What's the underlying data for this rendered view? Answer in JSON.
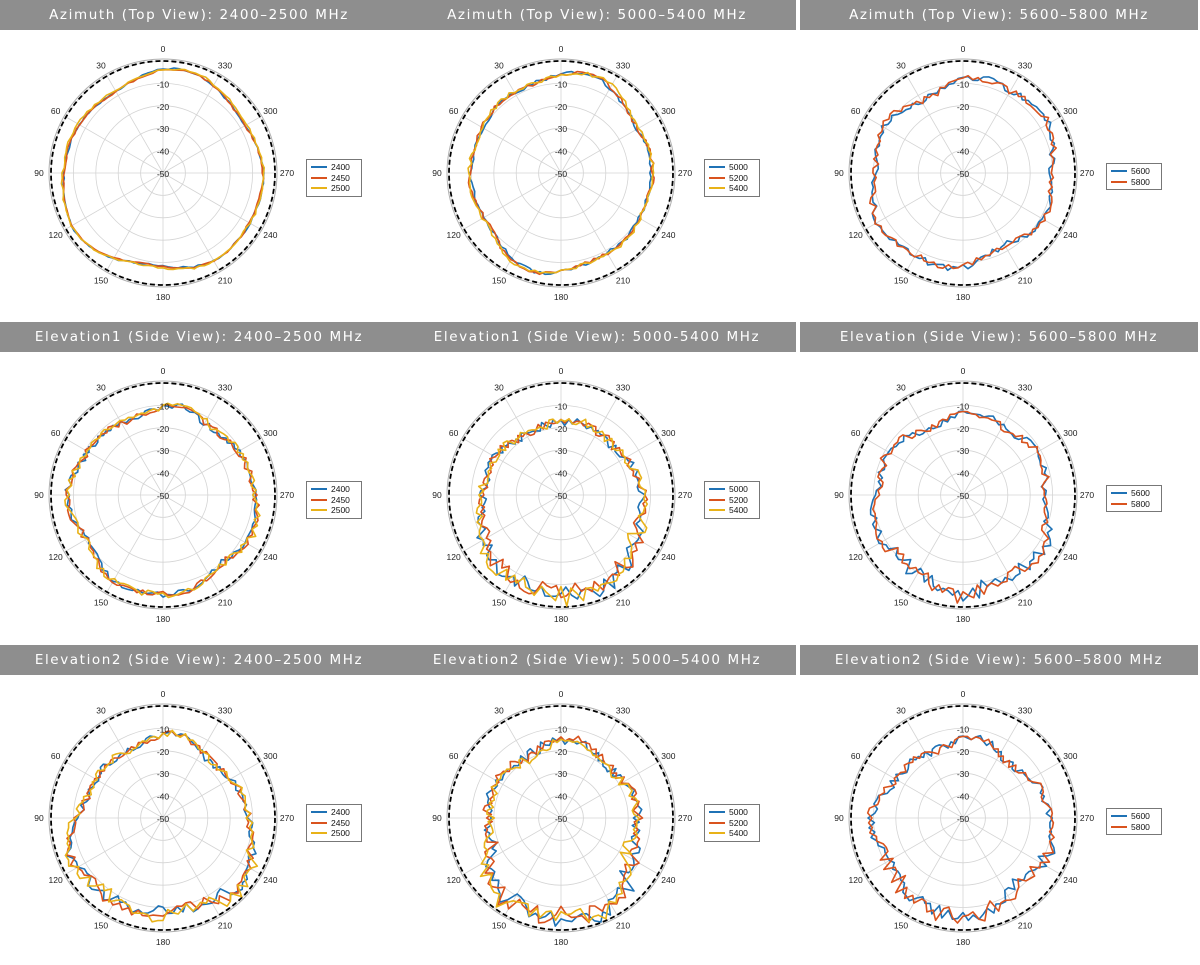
{
  "colors": {
    "blue": "#1f72b5",
    "red": "#d9531e",
    "yellow": "#e8b218",
    "reference": "#000000",
    "grid": "#d4d4d4",
    "header_bg": "#8e8e8e"
  },
  "polar_axes": {
    "angle_labels": [
      "0",
      "30",
      "60",
      "90",
      "120",
      "150",
      "180",
      "210",
      "240",
      "270",
      "300",
      "330"
    ],
    "radial_labels": [
      "0",
      "-10",
      "-20",
      "-30",
      "-40",
      "-50"
    ],
    "rlim": [
      -50,
      0
    ]
  },
  "panels": [
    {
      "title": "Azimuth (Top View): 2400–2500 MHz",
      "chart_data": {
        "type": "polar",
        "theta_direction": "counterclockwise",
        "theta_zero": "top",
        "rlim": [
          -50,
          0
        ],
        "series": [
          {
            "name": "2400",
            "color": "blue",
            "base": -5.8,
            "harmonics": [
              [
                3,
                1.9,
                0.3
              ],
              [
                5,
                1.0,
                1.0
              ],
              [
                2,
                0.6,
                2.0
              ]
            ],
            "noise": 0.4
          },
          {
            "name": "2450",
            "color": "red",
            "base": -5.9,
            "harmonics": [
              [
                3,
                1.8,
                0.4
              ],
              [
                5,
                1.0,
                1.1
              ],
              [
                2,
                0.5,
                2.1
              ]
            ],
            "noise": 0.4
          },
          {
            "name": "2500",
            "color": "yellow",
            "base": -5.5,
            "harmonics": [
              [
                3,
                1.6,
                0.5
              ],
              [
                5,
                0.9,
                1.2
              ],
              [
                2,
                0.6,
                2.2
              ]
            ],
            "noise": 0.5
          }
        ],
        "legend": [
          "2400",
          "2450",
          "2500"
        ]
      }
    },
    {
      "title": "Azimuth (Top View): 5000–5400 MHz",
      "chart_data": {
        "type": "polar",
        "theta_direction": "counterclockwise",
        "theta_zero": "top",
        "rlim": [
          -50,
          0
        ],
        "series": [
          {
            "name": "5000",
            "color": "blue",
            "base": -8.5,
            "harmonics": [
              [
                2,
                2.2,
                0.2
              ],
              [
                4,
                1.2,
                1.0
              ],
              [
                6,
                0.7,
                2.0
              ]
            ],
            "noise": 0.8
          },
          {
            "name": "5200",
            "color": "red",
            "base": -8.2,
            "harmonics": [
              [
                2,
                2.0,
                0.3
              ],
              [
                4,
                1.3,
                1.1
              ],
              [
                6,
                0.8,
                2.1
              ]
            ],
            "noise": 0.8
          },
          {
            "name": "5400",
            "color": "yellow",
            "base": -8.0,
            "harmonics": [
              [
                2,
                2.1,
                0.4
              ],
              [
                4,
                1.1,
                1.3
              ],
              [
                6,
                0.9,
                2.3
              ]
            ],
            "noise": 0.9
          }
        ],
        "legend": [
          "5000",
          "5200",
          "5400"
        ]
      }
    },
    {
      "title": "Azimuth (Top View): 5600–5800 MHz",
      "chart_data": {
        "type": "polar",
        "theta_direction": "counterclockwise",
        "theta_zero": "top",
        "rlim": [
          -50,
          0
        ],
        "series": [
          {
            "name": "5600",
            "color": "blue",
            "base": -9.0,
            "harmonics": [
              [
                2,
                2.3,
                1.5
              ],
              [
                6,
                1.5,
                0.2
              ],
              [
                4,
                0.9,
                2.0
              ]
            ],
            "noise": 1.4
          },
          {
            "name": "5800",
            "color": "red",
            "base": -9.0,
            "harmonics": [
              [
                2,
                2.2,
                1.6
              ],
              [
                6,
                1.6,
                0.3
              ],
              [
                4,
                1.0,
                2.1
              ]
            ],
            "noise": 1.5
          }
        ],
        "legend": [
          "5600",
          "5800"
        ]
      }
    },
    {
      "title": "Elevation1 (Side View): 2400–2500 MHz",
      "chart_data": {
        "type": "polar",
        "theta_direction": "counterclockwise",
        "theta_zero": "top",
        "rlim": [
          -50,
          0
        ],
        "series": [
          {
            "name": "2400",
            "color": "blue",
            "base": -9.5,
            "harmonics": [
              [
                1,
                2.8,
                3.14
              ],
              [
                4,
                1.6,
                0.5
              ],
              [
                7,
                0.9,
                1.0
              ]
            ],
            "noise": 1.4
          },
          {
            "name": "2450",
            "color": "red",
            "base": -9.3,
            "harmonics": [
              [
                1,
                2.7,
                3.14
              ],
              [
                4,
                1.5,
                0.6
              ],
              [
                7,
                1.0,
                1.1
              ]
            ],
            "noise": 1.4
          },
          {
            "name": "2500",
            "color": "yellow",
            "base": -9.0,
            "harmonics": [
              [
                1,
                2.9,
                3.14
              ],
              [
                4,
                1.4,
                0.7
              ],
              [
                7,
                1.0,
                1.2
              ]
            ],
            "noise": 1.5
          }
        ],
        "legend": [
          "2400",
          "2450",
          "2500"
        ]
      }
    },
    {
      "title": "Elevation1 (Side View): 5000-5400 MHz",
      "chart_data": {
        "type": "polar",
        "theta_direction": "counterclockwise",
        "theta_zero": "top",
        "rlim": [
          -50,
          0
        ],
        "series": [
          {
            "name": "5000",
            "color": "blue",
            "base": -13.0,
            "harmonics": [
              [
                1,
                6.5,
                3.14
              ],
              [
                2,
                1.5,
                0.0
              ],
              [
                5,
                1.0,
                0.8
              ]
            ],
            "noise": 2.0,
            "back_noise": 3.5
          },
          {
            "name": "5200",
            "color": "red",
            "base": -12.8,
            "harmonics": [
              [
                1,
                6.3,
                3.14
              ],
              [
                2,
                1.5,
                0.2
              ],
              [
                5,
                1.0,
                0.9
              ]
            ],
            "noise": 2.0,
            "back_noise": 3.5
          },
          {
            "name": "5400",
            "color": "yellow",
            "base": -12.5,
            "harmonics": [
              [
                1,
                6.6,
                3.14
              ],
              [
                2,
                1.4,
                0.3
              ],
              [
                5,
                1.1,
                1.0
              ]
            ],
            "noise": 2.1,
            "back_noise": 3.5
          }
        ],
        "legend": [
          "5000",
          "5200",
          "5400"
        ]
      }
    },
    {
      "title": "Elevation (Side View): 5600–5800 MHz",
      "chart_data": {
        "type": "polar",
        "theta_direction": "counterclockwise",
        "theta_zero": "top",
        "rlim": [
          -50,
          0
        ],
        "series": [
          {
            "name": "5600",
            "color": "blue",
            "base": -11.0,
            "harmonics": [
              [
                1,
                3.8,
                3.14
              ],
              [
                6,
                1.6,
                0.4
              ],
              [
                3,
                1.0,
                1.5
              ]
            ],
            "noise": 1.8,
            "back_noise": 2.8
          },
          {
            "name": "5800",
            "color": "red",
            "base": -11.0,
            "harmonics": [
              [
                1,
                3.9,
                3.14
              ],
              [
                6,
                1.7,
                0.5
              ],
              [
                3,
                1.1,
                1.6
              ]
            ],
            "noise": 1.8,
            "back_noise": 2.8
          }
        ],
        "legend": [
          "5600",
          "5800"
        ]
      }
    },
    {
      "title": "Elevation2 (Side View): 2400–2500 MHz",
      "chart_data": {
        "type": "polar",
        "theta_direction": "counterclockwise",
        "theta_zero": "top",
        "rlim": [
          -50,
          0
        ],
        "series": [
          {
            "name": "2400",
            "color": "blue",
            "base": -11.0,
            "harmonics": [
              [
                1,
                5.0,
                3.14
              ],
              [
                3,
                2.5,
                0.0
              ],
              [
                6,
                1.2,
                1.0
              ]
            ],
            "noise": 1.5,
            "back_noise": 2.5
          },
          {
            "name": "2450",
            "color": "red",
            "base": -11.0,
            "harmonics": [
              [
                1,
                4.8,
                3.14
              ],
              [
                3,
                2.4,
                0.1
              ],
              [
                6,
                1.2,
                1.1
              ]
            ],
            "noise": 1.5,
            "back_noise": 2.5
          },
          {
            "name": "2500",
            "color": "yellow",
            "base": -10.5,
            "harmonics": [
              [
                1,
                5.2,
                3.14
              ],
              [
                3,
                2.6,
                0.2
              ],
              [
                6,
                1.3,
                1.2
              ]
            ],
            "noise": 1.6,
            "back_noise": 2.5
          }
        ],
        "legend": [
          "2400",
          "2450",
          "2500"
        ]
      }
    },
    {
      "title": "Elevation2 (Side View): 5000–5400 MHz",
      "chart_data": {
        "type": "polar",
        "theta_direction": "counterclockwise",
        "theta_zero": "top",
        "rlim": [
          -50,
          0
        ],
        "series": [
          {
            "name": "5000",
            "color": "blue",
            "base": -13.5,
            "harmonics": [
              [
                1,
                6.0,
                3.14
              ],
              [
                2,
                3.0,
                0.0
              ],
              [
                5,
                1.5,
                0.5
              ]
            ],
            "noise": 2.2,
            "back_noise": 3.8
          },
          {
            "name": "5200",
            "color": "red",
            "base": -13.3,
            "harmonics": [
              [
                1,
                5.8,
                3.14
              ],
              [
                2,
                3.1,
                0.1
              ],
              [
                5,
                1.5,
                0.6
              ]
            ],
            "noise": 2.2,
            "back_noise": 3.8
          },
          {
            "name": "5400",
            "color": "yellow",
            "base": -14.0,
            "harmonics": [
              [
                1,
                6.4,
                3.14
              ],
              [
                2,
                3.5,
                0.2
              ],
              [
                5,
                1.6,
                0.7
              ]
            ],
            "noise": 2.0,
            "back_noise": 3.5
          }
        ],
        "legend": [
          "5000",
          "5200",
          "5400"
        ]
      }
    },
    {
      "title": "Elevation2 (Side View): 5600–5800 MHz",
      "chart_data": {
        "type": "polar",
        "theta_direction": "counterclockwise",
        "theta_zero": "top",
        "rlim": [
          -50,
          0
        ],
        "series": [
          {
            "name": "5600",
            "color": "blue",
            "base": -12.0,
            "harmonics": [
              [
                1,
                4.5,
                3.14
              ],
              [
                4,
                2.0,
                0.3
              ],
              [
                7,
                1.2,
                1.3
              ]
            ],
            "noise": 1.8,
            "back_noise": 3.0
          },
          {
            "name": "5800",
            "color": "red",
            "base": -12.0,
            "harmonics": [
              [
                1,
                4.6,
                3.14
              ],
              [
                4,
                2.1,
                0.4
              ],
              [
                7,
                1.3,
                1.4
              ]
            ],
            "noise": 1.8,
            "back_noise": 3.0
          }
        ],
        "legend": [
          "5600",
          "5800"
        ]
      }
    }
  ]
}
